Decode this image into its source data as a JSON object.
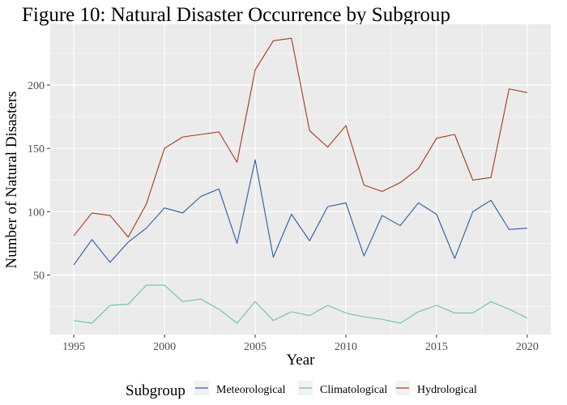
{
  "chart_data": {
    "type": "line",
    "title": "Figure 10: Natural Disaster Occurrence by Subgroup",
    "xlabel": "Year",
    "ylabel": "Number of Natural Disasters",
    "x": [
      1995,
      1996,
      1997,
      1998,
      1999,
      2000,
      2001,
      2002,
      2003,
      2004,
      2005,
      2006,
      2007,
      2008,
      2009,
      2010,
      2011,
      2012,
      2013,
      2014,
      2015,
      2016,
      2017,
      2018,
      2019,
      2020
    ],
    "xlim": [
      1993.7,
      2021.3
    ],
    "ylim": [
      3,
      248
    ],
    "x_ticks": [
      1995,
      2000,
      2005,
      2010,
      2015,
      2020
    ],
    "y_ticks": [
      50,
      100,
      150,
      200
    ],
    "grid": true,
    "legend": {
      "title": "Subgroup",
      "position": "bottom"
    },
    "series": [
      {
        "name": "Meteorological",
        "color": "#2c5b9c",
        "values": [
          58,
          78,
          60,
          76,
          87,
          103,
          99,
          112,
          118,
          75,
          141,
          64,
          98,
          77,
          104,
          107,
          65,
          97,
          89,
          107,
          98,
          63,
          100,
          109,
          86,
          87
        ]
      },
      {
        "name": "Climatological",
        "color": "#66c2a5",
        "values": [
          14,
          12,
          26,
          27,
          42,
          42,
          29,
          31,
          23,
          12,
          29,
          14,
          21,
          18,
          26,
          20,
          17,
          15,
          12,
          21,
          26,
          20,
          20,
          29,
          23,
          16
        ]
      },
      {
        "name": "Hydrological",
        "color": "#a33a1c",
        "values": [
          81,
          99,
          97,
          80,
          106,
          150,
          159,
          161,
          163,
          139,
          212,
          235,
          237,
          164,
          151,
          168,
          121,
          116,
          123,
          134,
          158,
          161,
          125,
          127,
          197,
          194
        ]
      }
    ]
  }
}
